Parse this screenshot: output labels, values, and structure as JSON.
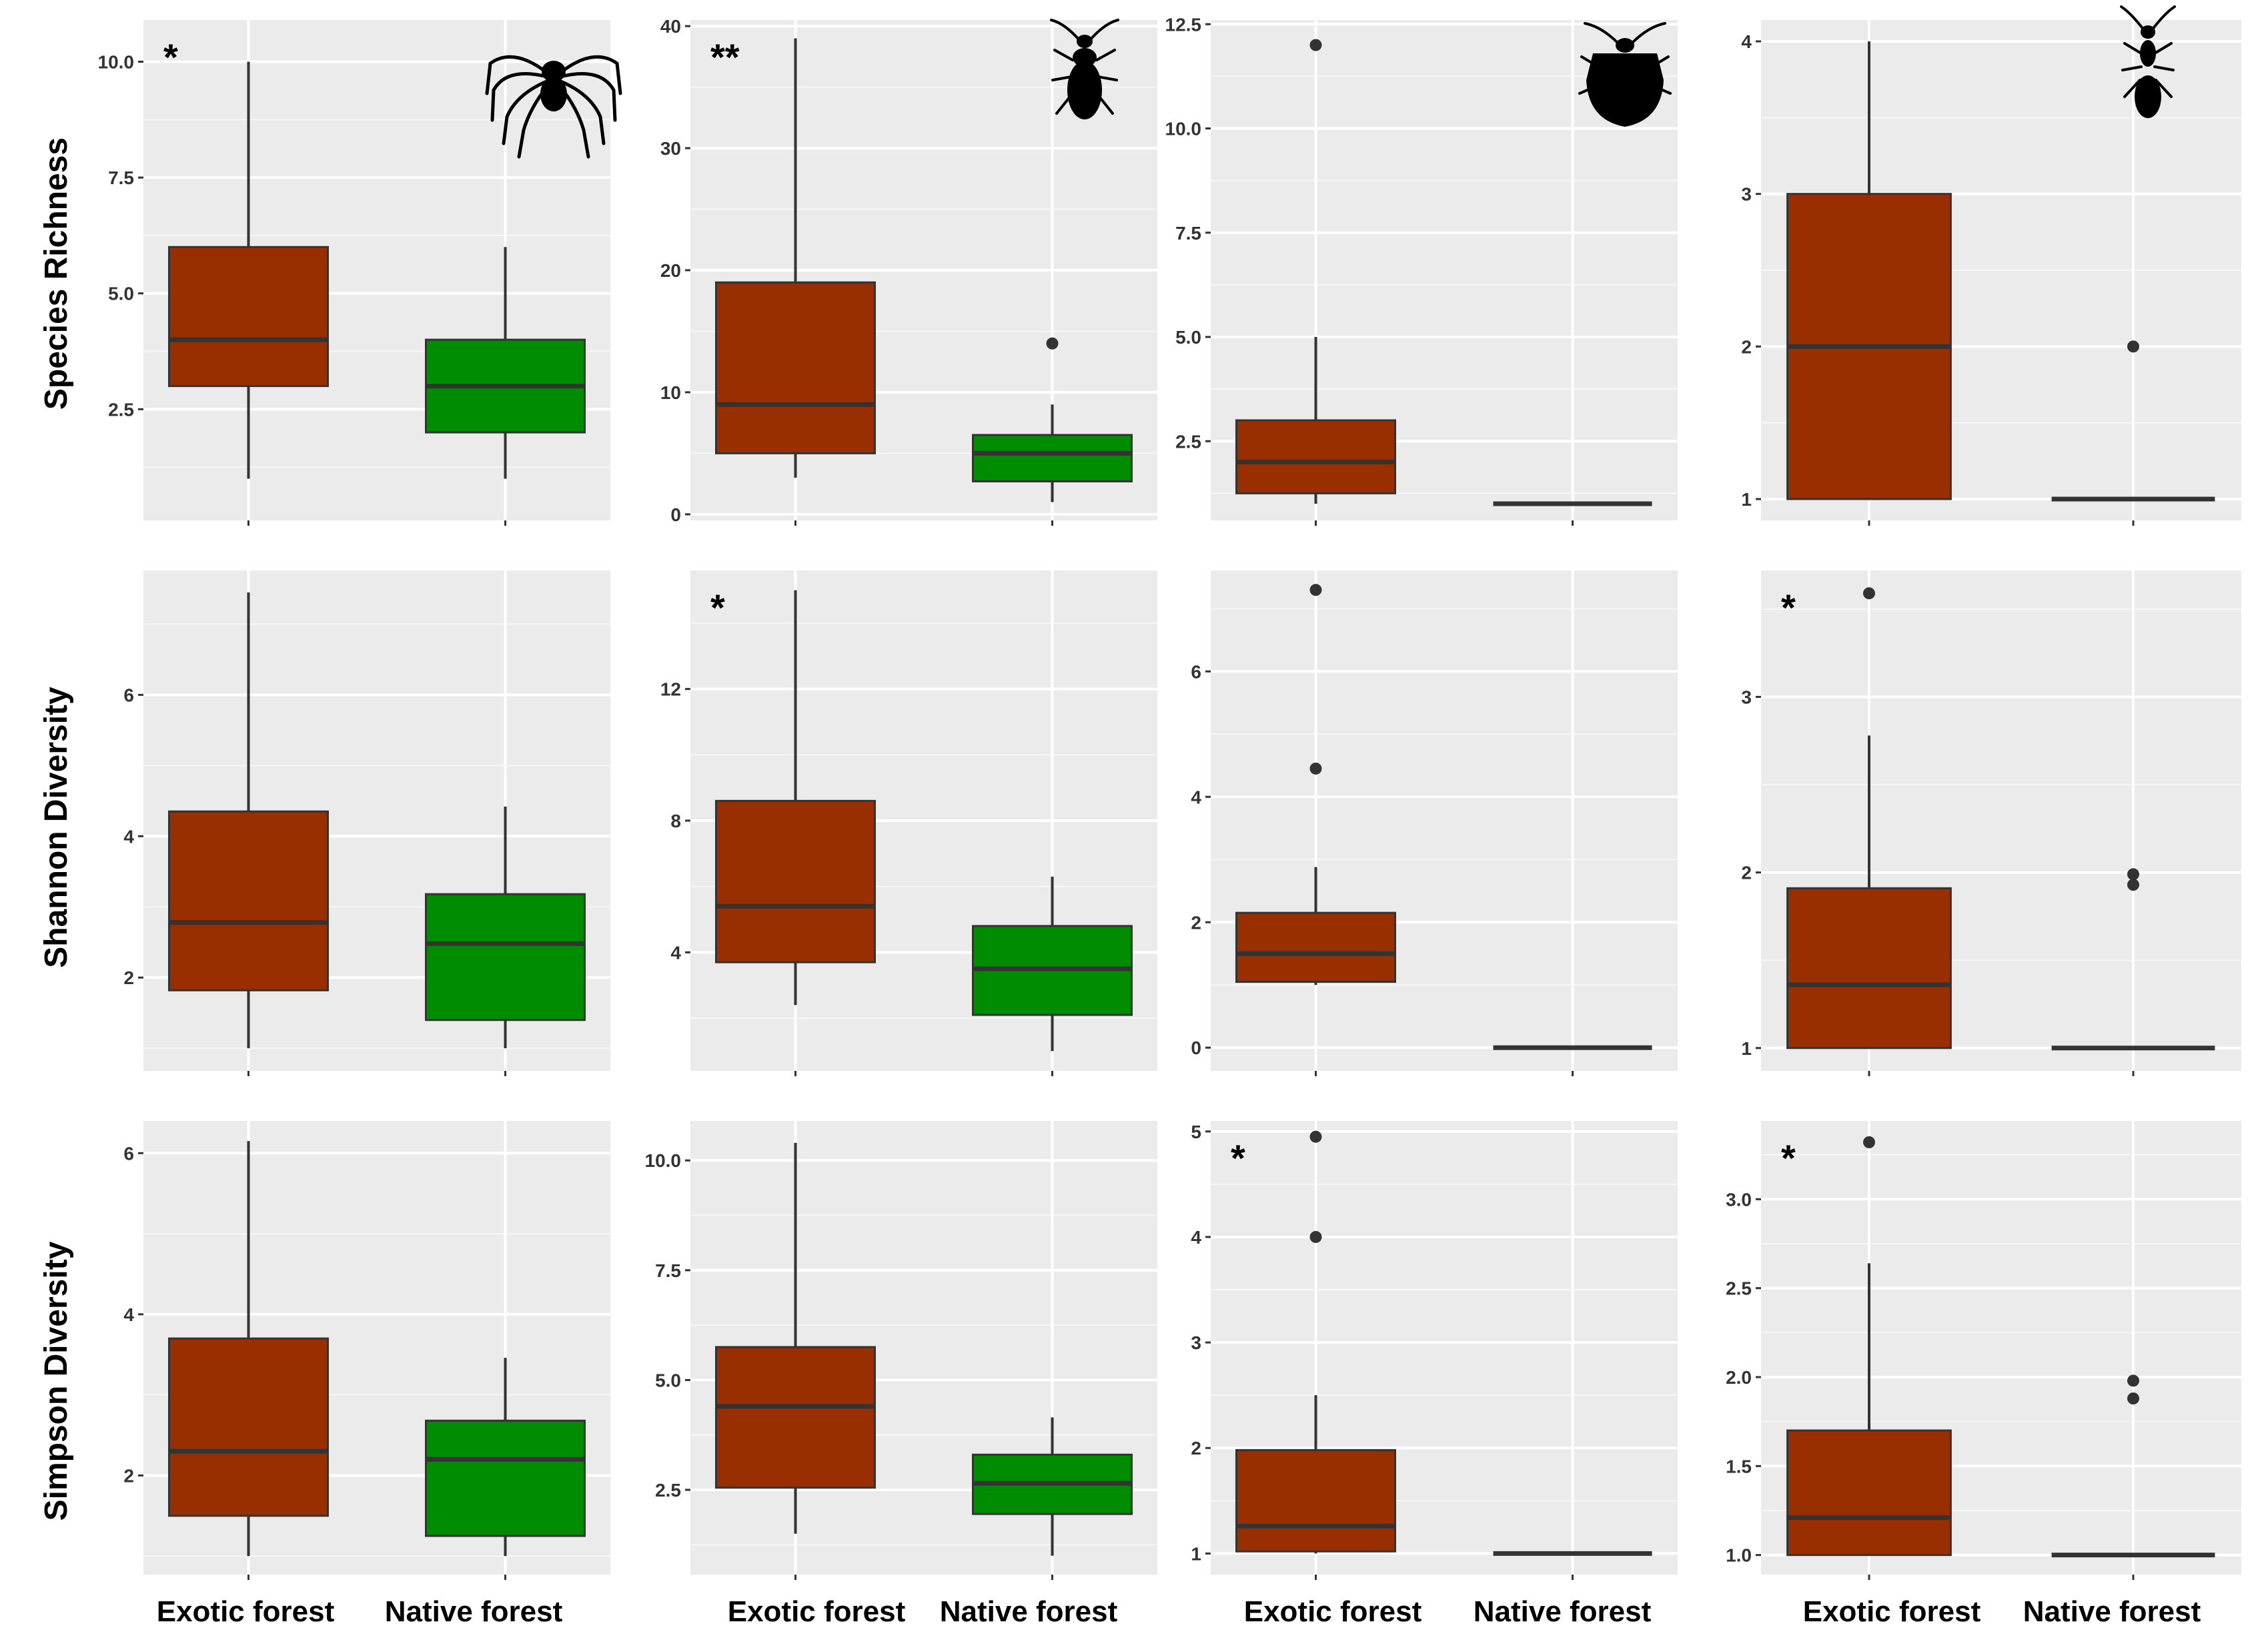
{
  "row_labels": [
    "Species Richness",
    "Shannon Diversity",
    "Simpson Diversity"
  ],
  "categories": [
    "Exotic forest",
    "Native forest"
  ],
  "colors": {
    "exotic": "#992e00",
    "native": "#008c00",
    "panel_bg": "#ebebeb",
    "grid": "#ffffff",
    "box_line": "#333333"
  },
  "icons": [
    "spider-icon",
    "ground-beetle-icon",
    "stink-bug-icon",
    "ant-icon"
  ],
  "chart_data": [
    {
      "type": "box",
      "row": "Species Richness",
      "column": 1,
      "icon": "spider-icon",
      "significance": "*",
      "yticks": [
        2.5,
        5.0,
        7.5,
        10.0
      ],
      "tick_labels": [
        "2.5",
        "5.0",
        "7.5",
        "10.0"
      ],
      "ylim": [
        0.1,
        10.9
      ],
      "boxes": [
        {
          "category": "Exotic forest",
          "min": 1,
          "q1": 3,
          "median": 4,
          "q3": 6,
          "max": 10,
          "outliers": []
        },
        {
          "category": "Native forest",
          "min": 1,
          "q1": 2,
          "median": 3,
          "q3": 4,
          "max": 6,
          "outliers": []
        }
      ]
    },
    {
      "type": "box",
      "row": "Species Richness",
      "column": 2,
      "icon": "ground-beetle-icon",
      "significance": "**",
      "yticks": [
        0,
        10,
        20,
        30,
        40
      ],
      "tick_labels": [
        "0",
        "10",
        "20",
        "30",
        "40"
      ],
      "ylim": [
        -0.5,
        40.5
      ],
      "boxes": [
        {
          "category": "Exotic forest",
          "min": 3,
          "q1": 5,
          "median": 9,
          "q3": 19,
          "max": 39,
          "outliers": []
        },
        {
          "category": "Native forest",
          "min": 1,
          "q1": 2.7,
          "median": 5,
          "q3": 6.5,
          "max": 9,
          "outliers": [
            14
          ]
        }
      ]
    },
    {
      "type": "box",
      "row": "Species Richness",
      "column": 3,
      "icon": "stink-bug-icon",
      "significance": "",
      "yticks": [
        2.5,
        5.0,
        7.5,
        10.0,
        12.5
      ],
      "tick_labels": [
        "2.5",
        "5.0",
        "7.5",
        "10.0",
        "12.5"
      ],
      "ylim": [
        0.6,
        12.6
      ],
      "boxes": [
        {
          "category": "Exotic forest",
          "min": 1,
          "q1": 1.25,
          "median": 2,
          "q3": 3,
          "max": 5,
          "outliers": [
            12
          ]
        },
        {
          "category": "Native forest",
          "min": 1,
          "q1": 1,
          "median": 1,
          "q3": 1,
          "max": 1,
          "outliers": []
        }
      ]
    },
    {
      "type": "box",
      "row": "Species Richness",
      "column": 4,
      "icon": "ant-icon",
      "significance": "",
      "yticks": [
        1,
        2,
        3,
        4
      ],
      "tick_labels": [
        "1",
        "2",
        "3",
        "4"
      ],
      "ylim": [
        0.86,
        4.14
      ],
      "boxes": [
        {
          "category": "Exotic forest",
          "min": 1,
          "q1": 1,
          "median": 2,
          "q3": 3,
          "max": 4,
          "outliers": []
        },
        {
          "category": "Native forest",
          "min": 1,
          "q1": 1,
          "median": 1,
          "q3": 1,
          "max": 1,
          "outliers": [
            2
          ]
        }
      ]
    },
    {
      "type": "box",
      "row": "Shannon Diversity",
      "column": 1,
      "icon": "",
      "significance": "",
      "yticks": [
        2,
        4,
        6
      ],
      "tick_labels": [
        "2",
        "4",
        "6"
      ],
      "ylim": [
        0.68,
        7.76
      ],
      "boxes": [
        {
          "category": "Exotic forest",
          "min": 1,
          "q1": 1.82,
          "median": 2.78,
          "q3": 4.35,
          "max": 7.45,
          "outliers": []
        },
        {
          "category": "Native forest",
          "min": 1,
          "q1": 1.4,
          "median": 2.48,
          "q3": 3.18,
          "max": 4.42,
          "outliers": []
        }
      ]
    },
    {
      "type": "box",
      "row": "Shannon Diversity",
      "column": 2,
      "icon": "",
      "significance": "*",
      "yticks": [
        4,
        8,
        12
      ],
      "tick_labels": [
        "4",
        "8",
        "12"
      ],
      "ylim": [
        0.4,
        15.6
      ],
      "boxes": [
        {
          "category": "Exotic forest",
          "min": 2.4,
          "q1": 3.7,
          "median": 5.4,
          "q3": 8.6,
          "max": 15,
          "outliers": []
        },
        {
          "category": "Native forest",
          "min": 1,
          "q1": 2.1,
          "median": 3.5,
          "q3": 4.8,
          "max": 6.3,
          "outliers": []
        }
      ]
    },
    {
      "type": "box",
      "row": "Shannon Diversity",
      "column": 3,
      "icon": "",
      "significance": "",
      "yticks": [
        0,
        2,
        4,
        6
      ],
      "tick_labels": [
        "0",
        "2",
        "4",
        "6"
      ],
      "ylim": [
        -0.37,
        7.61
      ],
      "boxes": [
        {
          "category": "Exotic forest",
          "min": 1,
          "q1": 1.05,
          "median": 1.5,
          "q3": 2.15,
          "max": 2.88,
          "outliers": [
            4.45,
            7.3
          ]
        },
        {
          "category": "Native forest",
          "min": 0,
          "q1": 0,
          "median": 0,
          "q3": 0,
          "max": 0,
          "outliers": []
        }
      ]
    },
    {
      "type": "box",
      "row": "Shannon Diversity",
      "column": 4,
      "icon": "",
      "significance": "*",
      "yticks": [
        1,
        2,
        3
      ],
      "tick_labels": [
        "1",
        "2",
        "3"
      ],
      "ylim": [
        0.87,
        3.72
      ],
      "boxes": [
        {
          "category": "Exotic forest",
          "min": 1,
          "q1": 1,
          "median": 1.36,
          "q3": 1.91,
          "max": 2.78,
          "outliers": [
            3.59
          ]
        },
        {
          "category": "Native forest",
          "min": 1,
          "q1": 1,
          "median": 1,
          "q3": 1,
          "max": 1,
          "outliers": [
            1.93,
            1.99
          ]
        }
      ]
    },
    {
      "type": "box",
      "row": "Simpson Diversity",
      "column": 1,
      "icon": "",
      "significance": "",
      "yticks": [
        2,
        4,
        6
      ],
      "tick_labels": [
        "2",
        "4",
        "6"
      ],
      "ylim": [
        0.77,
        6.4
      ],
      "boxes": [
        {
          "category": "Exotic forest",
          "min": 1,
          "q1": 1.5,
          "median": 2.3,
          "q3": 3.7,
          "max": 6.15,
          "outliers": []
        },
        {
          "category": "Native forest",
          "min": 1,
          "q1": 1.25,
          "median": 2.2,
          "q3": 2.68,
          "max": 3.46,
          "outliers": []
        }
      ]
    },
    {
      "type": "box",
      "row": "Simpson Diversity",
      "column": 2,
      "icon": "",
      "significance": "",
      "yticks": [
        2.5,
        5.0,
        7.5,
        10.0
      ],
      "tick_labels": [
        "2.5",
        "5.0",
        "7.5",
        "10.0"
      ],
      "ylim": [
        0.57,
        10.9
      ],
      "boxes": [
        {
          "category": "Exotic forest",
          "min": 1.5,
          "q1": 2.55,
          "median": 4.4,
          "q3": 5.75,
          "max": 10.4,
          "outliers": []
        },
        {
          "category": "Native forest",
          "min": 1,
          "q1": 1.95,
          "median": 2.65,
          "q3": 3.3,
          "max": 4.15,
          "outliers": []
        }
      ]
    },
    {
      "type": "box",
      "row": "Simpson Diversity",
      "column": 3,
      "icon": "",
      "significance": "*",
      "yticks": [
        1,
        2,
        3,
        4,
        5
      ],
      "tick_labels": [
        "1",
        "2",
        "3",
        "4",
        "5"
      ],
      "ylim": [
        0.8,
        5.1
      ],
      "boxes": [
        {
          "category": "Exotic forest",
          "min": 1,
          "q1": 1.02,
          "median": 1.26,
          "q3": 1.98,
          "max": 2.5,
          "outliers": [
            4,
            4.95
          ]
        },
        {
          "category": "Native forest",
          "min": 1,
          "q1": 1,
          "median": 1,
          "q3": 1,
          "max": 1,
          "outliers": []
        }
      ]
    },
    {
      "type": "box",
      "row": "Simpson Diversity",
      "column": 4,
      "icon": "",
      "significance": "*",
      "yticks": [
        1.0,
        1.5,
        2.0,
        2.5,
        3.0
      ],
      "tick_labels": [
        "1.0",
        "1.5",
        "2.0",
        "2.5",
        "3.0"
      ],
      "ylim": [
        0.89,
        3.44
      ],
      "boxes": [
        {
          "category": "Exotic forest",
          "min": 1,
          "q1": 1,
          "median": 1.21,
          "q3": 1.7,
          "max": 2.64,
          "outliers": [
            3.32
          ]
        },
        {
          "category": "Native forest",
          "min": 1,
          "q1": 1,
          "median": 1,
          "q3": 1,
          "max": 1,
          "outliers": [
            1.88,
            1.98
          ]
        }
      ]
    }
  ]
}
